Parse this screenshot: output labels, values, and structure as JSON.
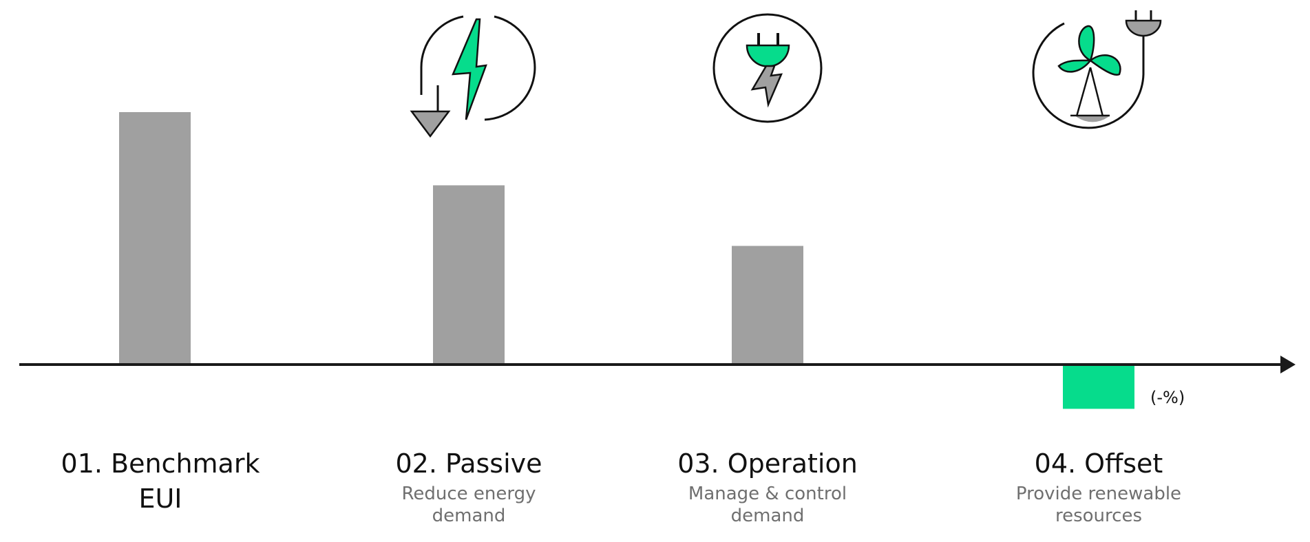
{
  "chart_data": {
    "type": "bar",
    "categories": [
      "01. Benchmark\nEUI",
      "02. Passive",
      "03. Operation",
      "04. Offset"
    ],
    "subtitles": [
      "",
      "Reduce energy\ndemand",
      "Manage & control\ndemand",
      "Provide renewable\nresources"
    ],
    "values": [
      100,
      71,
      47,
      -17
    ],
    "ylim": [
      -25,
      110
    ],
    "axis_end_label": "(-%)",
    "icons": [
      "",
      "grounding-lightning-icon",
      "plug-lightning-icon",
      "wind-turbine-plug-icon"
    ],
    "colors": {
      "positive": "#a0a0a0",
      "negative": "#06dc8c",
      "axis": "#1a1a1a",
      "accent": "#06dc8c",
      "icon_gray": "#a0a0a0"
    }
  }
}
